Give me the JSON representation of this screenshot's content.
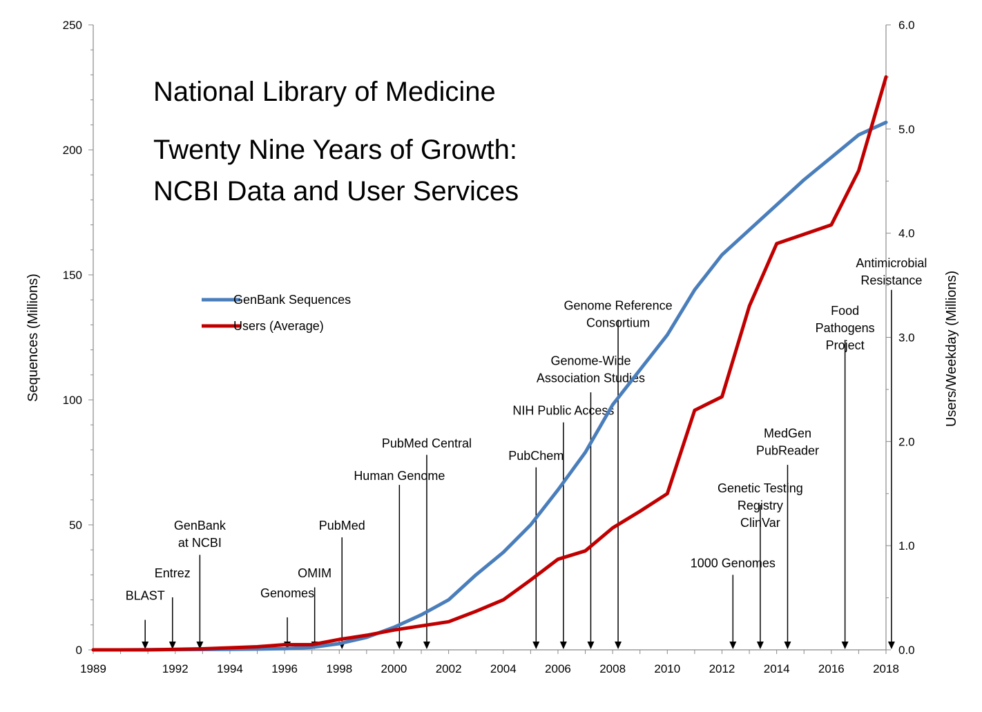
{
  "chart_data": {
    "type": "line",
    "title": "National Library of Medicine",
    "subtitle_lines": [
      "Twenty Nine Years of Growth:",
      "NCBI Data and User Services"
    ],
    "ylabel": "Sequences (Millions)",
    "y2label": "Users/Weekday (Millions)",
    "xlim": [
      1989,
      2018
    ],
    "ylim": [
      0,
      250
    ],
    "y2lim": [
      0,
      6
    ],
    "x_tick_labels": [
      "1989",
      "1992",
      "1994",
      "1996",
      "1998",
      "2000",
      "2002",
      "2004",
      "2006",
      "2008",
      "2010",
      "2012",
      "2014",
      "2016",
      "2018"
    ],
    "y_tick_labels": [
      "0",
      "50",
      "100",
      "150",
      "200",
      "250"
    ],
    "y2_tick_labels": [
      "0.0",
      "1.0",
      "2.0",
      "3.0",
      "4.0",
      "5.0",
      "6.0"
    ],
    "legend_position": "center-left",
    "grid": false,
    "series": [
      {
        "name": "GenBank Sequences",
        "axis": "left",
        "color": "#4a7ebb",
        "x": [
          1989,
          1990,
          1991,
          1992,
          1993,
          1994,
          1995,
          1996,
          1997,
          1998,
          1999,
          2000,
          2001,
          2002,
          2003,
          2004,
          2005,
          2006,
          2007,
          2008,
          2009,
          2010,
          2011,
          2012,
          2013,
          2014,
          2015,
          2016,
          2017,
          2018
        ],
        "values": [
          0,
          0,
          0.05,
          0.1,
          0.15,
          0.2,
          0.3,
          0.5,
          1,
          2.5,
          5,
          9,
          14,
          20,
          30,
          39,
          50,
          64,
          79,
          98,
          112,
          126,
          144,
          158,
          168,
          178,
          188,
          197,
          206,
          211
        ]
      },
      {
        "name": "Users (Average)",
        "axis": "right",
        "color": "#c00000",
        "x": [
          1989,
          1990,
          1991,
          1992,
          1993,
          1994,
          1995,
          1996,
          1997,
          1998,
          1999,
          2000,
          2001,
          2002,
          2003,
          2004,
          2005,
          2006,
          2007,
          2008,
          2009,
          2010,
          2011,
          2012,
          2013,
          2014,
          2015,
          2016,
          2017,
          2018
        ],
        "values": [
          0,
          0,
          0,
          0.005,
          0.01,
          0.02,
          0.03,
          0.05,
          0.05,
          0.1,
          0.14,
          0.19,
          0.23,
          0.27,
          0.37,
          0.48,
          0.67,
          0.87,
          0.95,
          1.17,
          1.33,
          1.5,
          2.3,
          2.43,
          3.3,
          3.9,
          3.99,
          4.08,
          4.6,
          5.5
        ]
      }
    ],
    "annotations": [
      {
        "lines": [
          "BLAST"
        ],
        "x": 1990.9,
        "label_y": 20,
        "arrow_from": 12,
        "arrow_to": 0
      },
      {
        "lines": [
          "Entrez"
        ],
        "x": 1991.9,
        "label_y": 29,
        "arrow_from": 21,
        "arrow_to": 0
      },
      {
        "lines": [
          "GenBank",
          "at NCBI"
        ],
        "x": 1992.9,
        "label_y": 48,
        "arrow_from": 38,
        "arrow_to": 0
      },
      {
        "lines": [
          "Genomes"
        ],
        "x": 1996.1,
        "label_y": 21,
        "arrow_from": 13,
        "arrow_to": 0
      },
      {
        "lines": [
          "OMIM"
        ],
        "x": 1997.1,
        "label_y": 29,
        "arrow_from": 25,
        "arrow_to": 0
      },
      {
        "lines": [
          "PubMed"
        ],
        "x": 1998.1,
        "label_y": 48,
        "arrow_from": 45,
        "arrow_to": 0
      },
      {
        "lines": [
          "Human Genome"
        ],
        "x": 2000.2,
        "label_y": 68,
        "arrow_from": 66,
        "arrow_to": 0
      },
      {
        "lines": [
          "PubMed Central"
        ],
        "x": 2001.2,
        "label_y": 81,
        "arrow_from": 78,
        "arrow_to": 0
      },
      {
        "lines": [
          "PubChem"
        ],
        "x": 2005.2,
        "label_y": 76,
        "arrow_from": 73,
        "arrow_to": 0
      },
      {
        "lines": [
          "NIH Public Access"
        ],
        "x": 2006.2,
        "label_y": 94,
        "arrow_from": 91,
        "arrow_to": 0
      },
      {
        "lines": [
          "Genome-Wide",
          "Association Studies"
        ],
        "x": 2007.2,
        "label_y": 114,
        "arrow_from": 103,
        "arrow_to": 0
      },
      {
        "lines": [
          "Genome Reference",
          "Consortium"
        ],
        "x": 2008.2,
        "label_y": 136,
        "arrow_from": 132,
        "arrow_to": 0
      },
      {
        "lines": [
          "1000 Genomes"
        ],
        "x": 2012.4,
        "label_y": 33,
        "arrow_from": 30,
        "arrow_to": 0
      },
      {
        "lines": [
          "Genetic Testing",
          "Registry",
          "ClinVar"
        ],
        "x": 2013.4,
        "label_y": 63,
        "arrow_from": 58,
        "arrow_to": 0
      },
      {
        "lines": [
          "MedGen",
          "PubReader"
        ],
        "x": 2014.4,
        "label_y": 85,
        "arrow_from": 74,
        "arrow_to": 0
      },
      {
        "lines": [
          "Food",
          "Pathogens",
          "Project"
        ],
        "x": 2016.5,
        "label_y": 134,
        "arrow_from": 124,
        "arrow_to": 0
      },
      {
        "lines": [
          "Antimicrobial",
          "Resistance"
        ],
        "x": 2018.2,
        "label_y": 153,
        "arrow_from": 144,
        "arrow_to": 0
      }
    ]
  }
}
